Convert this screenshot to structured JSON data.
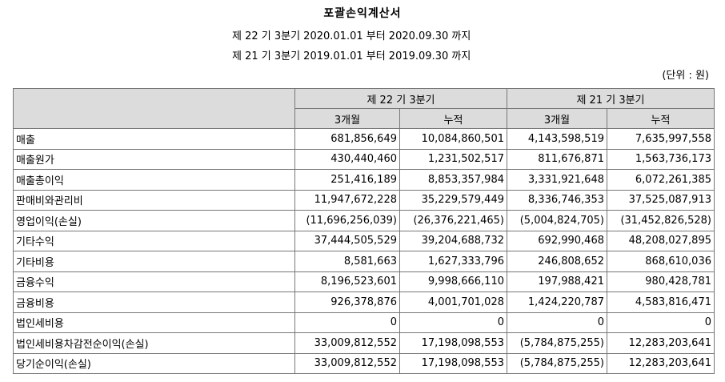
{
  "title": "포괄손익계산서",
  "period_current": "제 22 기 3분기 2020.01.01 부터 2020.09.30 까지",
  "period_prior": "제 21 기 3분기 2019.01.01 부터 2019.09.30 까지",
  "unit": "(단위 : 원)",
  "header": {
    "current_period": "제 22 기 3분기",
    "prior_period": "제 21 기 3분기",
    "col_3m": "3개월",
    "col_cum": "누적"
  },
  "rows": [
    {
      "label": "매출",
      "cur_3m": "681,856,649",
      "cur_cum": "10,084,860,501",
      "pri_3m": "4,143,598,519",
      "pri_cum": "7,635,997,558"
    },
    {
      "label": "매출원가",
      "cur_3m": "430,440,460",
      "cur_cum": "1,231,502,517",
      "pri_3m": "811,676,871",
      "pri_cum": "1,563,736,173"
    },
    {
      "label": "매출총이익",
      "cur_3m": "251,416,189",
      "cur_cum": "8,853,357,984",
      "pri_3m": "3,331,921,648",
      "pri_cum": "6,072,261,385"
    },
    {
      "label": "판매비와관리비",
      "cur_3m": "11,947,672,228",
      "cur_cum": "35,229,579,449",
      "pri_3m": "8,336,746,353",
      "pri_cum": "37,525,087,913"
    },
    {
      "label": "영업이익(손실)",
      "cur_3m": "(11,696,256,039)",
      "cur_cum": "(26,376,221,465)",
      "pri_3m": "(5,004,824,705)",
      "pri_cum": "(31,452,826,528)"
    },
    {
      "label": "기타수익",
      "cur_3m": "37,444,505,529",
      "cur_cum": "39,204,688,732",
      "pri_3m": "692,990,468",
      "pri_cum": "48,208,027,895"
    },
    {
      "label": "기타비용",
      "cur_3m": "8,581,663",
      "cur_cum": "1,627,333,796",
      "pri_3m": "246,808,652",
      "pri_cum": "868,610,036"
    },
    {
      "label": "금융수익",
      "cur_3m": "8,196,523,601",
      "cur_cum": "9,998,666,110",
      "pri_3m": "197,988,421",
      "pri_cum": "980,428,781"
    },
    {
      "label": "금융비용",
      "cur_3m": "926,378,876",
      "cur_cum": "4,001,701,028",
      "pri_3m": "1,424,220,787",
      "pri_cum": "4,583,816,471"
    },
    {
      "label": "법인세비용",
      "cur_3m": "0",
      "cur_cum": "0",
      "pri_3m": "0",
      "pri_cum": "0"
    },
    {
      "label": "법인세비용차감전순이익(손실)",
      "cur_3m": "33,009,812,552",
      "cur_cum": "17,198,098,553",
      "pri_3m": "(5,784,875,255)",
      "pri_cum": "12,283,203,641"
    },
    {
      "label": "당기순이익(손실)",
      "cur_3m": "33,009,812,552",
      "cur_cum": "17,198,098,553",
      "pri_3m": "(5,784,875,255)",
      "pri_cum": "12,283,203,641"
    }
  ]
}
